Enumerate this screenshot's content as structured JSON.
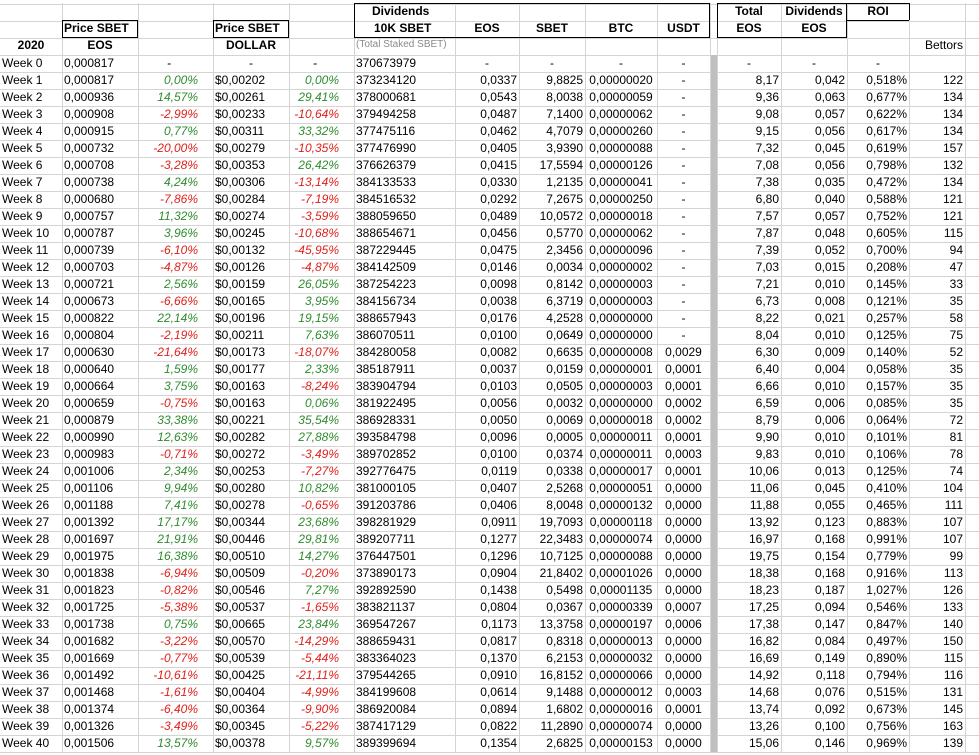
{
  "headers": {
    "price_sbet_eos": [
      "Price SBET",
      "EOS"
    ],
    "price_sbet_dollar": [
      "Price SBET",
      "DOLLAR"
    ],
    "dividends_10k": [
      "Dividends",
      "10K SBET"
    ],
    "total_staked_note": "(Total Staked SBET)",
    "eos": "EOS",
    "sbet": "SBET",
    "btc": "BTC",
    "usdt": "USDT",
    "total_eos": [
      "Total",
      "EOS"
    ],
    "dividends_eos": [
      "Dividends",
      "EOS"
    ],
    "roi": "ROI",
    "year": "2020",
    "bettors": "Bettors"
  },
  "rows": [
    {
      "week": "Week 0",
      "p_eos": "0,000817",
      "p_eos_pct": "-",
      "p_usd": "-",
      "p_usd_pct": "-",
      "staked": "370673979",
      "d_eos": "-",
      "d_sbet": "-",
      "d_btc": "-",
      "d_usdt": "-",
      "total": "-",
      "div": "-",
      "roi": "-",
      "bettors": ""
    },
    {
      "week": "Week 1",
      "p_eos": "0,000817",
      "p_eos_pct": "0,00%",
      "p_usd": "$0,00202",
      "p_usd_pct": "0,00%",
      "staked": "373234120",
      "d_eos": "0,0337",
      "d_sbet": "9,8825",
      "d_btc": "0,00000020",
      "d_usdt": "-",
      "total": "8,17",
      "div": "0,042",
      "roi": "0,518%",
      "bettors": "122"
    },
    {
      "week": "Week 2",
      "p_eos": "0,000936",
      "p_eos_pct": "14,57%",
      "p_usd": "$0,00261",
      "p_usd_pct": "29,41%",
      "staked": "378000681",
      "d_eos": "0,0543",
      "d_sbet": "8,0038",
      "d_btc": "0,00000059",
      "d_usdt": "-",
      "total": "9,36",
      "div": "0,063",
      "roi": "0,677%",
      "bettors": "134"
    },
    {
      "week": "Week 3",
      "p_eos": "0,000908",
      "p_eos_pct": "-2,99%",
      "p_usd": "$0,00233",
      "p_usd_pct": "-10,64%",
      "staked": "379494258",
      "d_eos": "0,0487",
      "d_sbet": "7,1400",
      "d_btc": "0,00000062",
      "d_usdt": "-",
      "total": "9,08",
      "div": "0,057",
      "roi": "0,622%",
      "bettors": "134"
    },
    {
      "week": "Week 4",
      "p_eos": "0,000915",
      "p_eos_pct": "0,77%",
      "p_usd": "$0,00311",
      "p_usd_pct": "33,32%",
      "staked": "377475116",
      "d_eos": "0,0462",
      "d_sbet": "4,7079",
      "d_btc": "0,00000260",
      "d_usdt": "-",
      "total": "9,15",
      "div": "0,056",
      "roi": "0,617%",
      "bettors": "134"
    },
    {
      "week": "Week 5",
      "p_eos": "0,000732",
      "p_eos_pct": "-20,00%",
      "p_usd": "$0,00279",
      "p_usd_pct": "-10,35%",
      "staked": "377476990",
      "d_eos": "0,0405",
      "d_sbet": "3,9390",
      "d_btc": "0,00000088",
      "d_usdt": "-",
      "total": "7,32",
      "div": "0,045",
      "roi": "0,619%",
      "bettors": "157"
    },
    {
      "week": "Week 6",
      "p_eos": "0,000708",
      "p_eos_pct": "-3,28%",
      "p_usd": "$0,00353",
      "p_usd_pct": "26,42%",
      "staked": "376626379",
      "d_eos": "0,0415",
      "d_sbet": "17,5594",
      "d_btc": "0,00000126",
      "d_usdt": "-",
      "total": "7,08",
      "div": "0,056",
      "roi": "0,798%",
      "bettors": "132"
    },
    {
      "week": "Week 7",
      "p_eos": "0,000738",
      "p_eos_pct": "4,24%",
      "p_usd": "$0,00306",
      "p_usd_pct": "-13,14%",
      "staked": "384133533",
      "d_eos": "0,0330",
      "d_sbet": "1,2135",
      "d_btc": "0,00000041",
      "d_usdt": "-",
      "total": "7,38",
      "div": "0,035",
      "roi": "0,472%",
      "bettors": "134"
    },
    {
      "week": "Week 8",
      "p_eos": "0,000680",
      "p_eos_pct": "-7,86%",
      "p_usd": "$0,00284",
      "p_usd_pct": "-7,19%",
      "staked": "384516532",
      "d_eos": "0,0292",
      "d_sbet": "7,2675",
      "d_btc": "0,00000250",
      "d_usdt": "-",
      "total": "6,80",
      "div": "0,040",
      "roi": "0,588%",
      "bettors": "121"
    },
    {
      "week": "Week 9",
      "p_eos": "0,000757",
      "p_eos_pct": "11,32%",
      "p_usd": "$0,00274",
      "p_usd_pct": "-3,59%",
      "staked": "388059650",
      "d_eos": "0,0489",
      "d_sbet": "10,0572",
      "d_btc": "0,00000018",
      "d_usdt": "-",
      "total": "7,57",
      "div": "0,057",
      "roi": "0,752%",
      "bettors": "121"
    },
    {
      "week": "Week 10",
      "p_eos": "0,000787",
      "p_eos_pct": "3,96%",
      "p_usd": "$0,00245",
      "p_usd_pct": "-10,68%",
      "staked": "388654671",
      "d_eos": "0,0456",
      "d_sbet": "0,5770",
      "d_btc": "0,00000062",
      "d_usdt": "-",
      "total": "7,87",
      "div": "0,048",
      "roi": "0,605%",
      "bettors": "115"
    },
    {
      "week": "Week 11",
      "p_eos": "0,000739",
      "p_eos_pct": "-6,10%",
      "p_usd": "$0,00132",
      "p_usd_pct": "-45,95%",
      "staked": "387229445",
      "d_eos": "0,0475",
      "d_sbet": "2,3456",
      "d_btc": "0,00000096",
      "d_usdt": "-",
      "total": "7,39",
      "div": "0,052",
      "roi": "0,700%",
      "bettors": "94"
    },
    {
      "week": "Week 12",
      "p_eos": "0,000703",
      "p_eos_pct": "-4,87%",
      "p_usd": "$0,00126",
      "p_usd_pct": "-4,87%",
      "staked": "384142509",
      "d_eos": "0,0146",
      "d_sbet": "0,0034",
      "d_btc": "0,00000002",
      "d_usdt": "-",
      "total": "7,03",
      "div": "0,015",
      "roi": "0,208%",
      "bettors": "47"
    },
    {
      "week": "Week 13",
      "p_eos": "0,000721",
      "p_eos_pct": "2,56%",
      "p_usd": "$0,00159",
      "p_usd_pct": "26,05%",
      "staked": "387254223",
      "d_eos": "0,0098",
      "d_sbet": "0,8142",
      "d_btc": "0,00000003",
      "d_usdt": "-",
      "total": "7,21",
      "div": "0,010",
      "roi": "0,145%",
      "bettors": "33"
    },
    {
      "week": "Week 14",
      "p_eos": "0,000673",
      "p_eos_pct": "-6,66%",
      "p_usd": "$0,00165",
      "p_usd_pct": "3,95%",
      "staked": "384156734",
      "d_eos": "0,0038",
      "d_sbet": "6,3719",
      "d_btc": "0,00000003",
      "d_usdt": "-",
      "total": "6,73",
      "div": "0,008",
      "roi": "0,121%",
      "bettors": "35"
    },
    {
      "week": "Week 15",
      "p_eos": "0,000822",
      "p_eos_pct": "22,14%",
      "p_usd": "$0,00196",
      "p_usd_pct": "19,15%",
      "staked": "388657943",
      "d_eos": "0,0176",
      "d_sbet": "4,2528",
      "d_btc": "0,00000000",
      "d_usdt": "-",
      "total": "8,22",
      "div": "0,021",
      "roi": "0,257%",
      "bettors": "58"
    },
    {
      "week": "Week 16",
      "p_eos": "0,000804",
      "p_eos_pct": "-2,19%",
      "p_usd": "$0,00211",
      "p_usd_pct": "7,63%",
      "staked": "386070511",
      "d_eos": "0,0100",
      "d_sbet": "0,0649",
      "d_btc": "0,00000000",
      "d_usdt": "-",
      "total": "8,04",
      "div": "0,010",
      "roi": "0,125%",
      "bettors": "75"
    },
    {
      "week": "Week 17",
      "p_eos": "0,000630",
      "p_eos_pct": "-21,64%",
      "p_usd": "$0,00173",
      "p_usd_pct": "-18,07%",
      "staked": "384280058",
      "d_eos": "0,0082",
      "d_sbet": "0,6635",
      "d_btc": "0,00000008",
      "d_usdt": "0,0029",
      "total": "6,30",
      "div": "0,009",
      "roi": "0,140%",
      "bettors": "52"
    },
    {
      "week": "Week 18",
      "p_eos": "0,000640",
      "p_eos_pct": "1,59%",
      "p_usd": "$0,00177",
      "p_usd_pct": "2,33%",
      "staked": "385187911",
      "d_eos": "0,0037",
      "d_sbet": "0,0159",
      "d_btc": "0,00000001",
      "d_usdt": "0,0001",
      "total": "6,40",
      "div": "0,004",
      "roi": "0,058%",
      "bettors": "35"
    },
    {
      "week": "Week 19",
      "p_eos": "0,000664",
      "p_eos_pct": "3,75%",
      "p_usd": "$0,00163",
      "p_usd_pct": "-8,24%",
      "staked": "383904794",
      "d_eos": "0,0103",
      "d_sbet": "0,0505",
      "d_btc": "0,00000003",
      "d_usdt": "0,0001",
      "total": "6,66",
      "div": "0,010",
      "roi": "0,157%",
      "bettors": "35"
    },
    {
      "week": "Week 20",
      "p_eos": "0,000659",
      "p_eos_pct": "-0,75%",
      "p_usd": "$0,00163",
      "p_usd_pct": "0,06%",
      "staked": "381922495",
      "d_eos": "0,0056",
      "d_sbet": "0,0032",
      "d_btc": "0,00000000",
      "d_usdt": "0,0002",
      "total": "6,59",
      "div": "0,006",
      "roi": "0,085%",
      "bettors": "35"
    },
    {
      "week": "Week 21",
      "p_eos": "0,000879",
      "p_eos_pct": "33,38%",
      "p_usd": "$0,00221",
      "p_usd_pct": "35,54%",
      "staked": "386928331",
      "d_eos": "0,0050",
      "d_sbet": "0,0069",
      "d_btc": "0,00000018",
      "d_usdt": "0,0002",
      "total": "8,79",
      "div": "0,006",
      "roi": "0,064%",
      "bettors": "72"
    },
    {
      "week": "Week 22",
      "p_eos": "0,000990",
      "p_eos_pct": "12,63%",
      "p_usd": "$0,00282",
      "p_usd_pct": "27,88%",
      "staked": "393584798",
      "d_eos": "0,0096",
      "d_sbet": "0,0005",
      "d_btc": "0,00000011",
      "d_usdt": "0,0001",
      "total": "9,90",
      "div": "0,010",
      "roi": "0,101%",
      "bettors": "81"
    },
    {
      "week": "Week 23",
      "p_eos": "0,000983",
      "p_eos_pct": "-0,71%",
      "p_usd": "$0,00272",
      "p_usd_pct": "-3,49%",
      "staked": "389702852",
      "d_eos": "0,0100",
      "d_sbet": "0,0374",
      "d_btc": "0,00000011",
      "d_usdt": "0,0003",
      "total": "9,83",
      "div": "0,010",
      "roi": "0,106%",
      "bettors": "78"
    },
    {
      "week": "Week 24",
      "p_eos": "0,001006",
      "p_eos_pct": "2,34%",
      "p_usd": "$0,00253",
      "p_usd_pct": "-7,27%",
      "staked": "392776475",
      "d_eos": "0,0119",
      "d_sbet": "0,0338",
      "d_btc": "0,00000017",
      "d_usdt": "0,0001",
      "total": "10,06",
      "div": "0,013",
      "roi": "0,125%",
      "bettors": "74"
    },
    {
      "week": "Week 25",
      "p_eos": "0,001106",
      "p_eos_pct": "9,94%",
      "p_usd": "$0,00280",
      "p_usd_pct": "10,82%",
      "staked": "381000105",
      "d_eos": "0,0407",
      "d_sbet": "2,5268",
      "d_btc": "0,00000051",
      "d_usdt": "0,0000",
      "total": "11,06",
      "div": "0,045",
      "roi": "0,410%",
      "bettors": "104"
    },
    {
      "week": "Week 26",
      "p_eos": "0,001188",
      "p_eos_pct": "7,41%",
      "p_usd": "$0,00278",
      "p_usd_pct": "-0,65%",
      "staked": "391203786",
      "d_eos": "0,0406",
      "d_sbet": "8,0048",
      "d_btc": "0,00000132",
      "d_usdt": "0,0000",
      "total": "11,88",
      "div": "0,055",
      "roi": "0,465%",
      "bettors": "111"
    },
    {
      "week": "Week 27",
      "p_eos": "0,001392",
      "p_eos_pct": "17,17%",
      "p_usd": "$0,00344",
      "p_usd_pct": "23,68%",
      "staked": "398281929",
      "d_eos": "0,0911",
      "d_sbet": "19,7093",
      "d_btc": "0,00000118",
      "d_usdt": "0,0000",
      "total": "13,92",
      "div": "0,123",
      "roi": "0,883%",
      "bettors": "107"
    },
    {
      "week": "Week 28",
      "p_eos": "0,001697",
      "p_eos_pct": "21,91%",
      "p_usd": "$0,00446",
      "p_usd_pct": "29,81%",
      "staked": "389207711",
      "d_eos": "0,1277",
      "d_sbet": "22,3483",
      "d_btc": "0,00000074",
      "d_usdt": "0,0000",
      "total": "16,97",
      "div": "0,168",
      "roi": "0,991%",
      "bettors": "107"
    },
    {
      "week": "Week 29",
      "p_eos": "0,001975",
      "p_eos_pct": "16,38%",
      "p_usd": "$0,00510",
      "p_usd_pct": "14,27%",
      "staked": "376447501",
      "d_eos": "0,1296",
      "d_sbet": "10,7125",
      "d_btc": "0,00000088",
      "d_usdt": "0,0000",
      "total": "19,75",
      "div": "0,154",
      "roi": "0,779%",
      "bettors": "99"
    },
    {
      "week": "Week 30",
      "p_eos": "0,001838",
      "p_eos_pct": "-6,94%",
      "p_usd": "$0,00509",
      "p_usd_pct": "-0,20%",
      "staked": "373890173",
      "d_eos": "0,0904",
      "d_sbet": "21,8402",
      "d_btc": "0,00001026",
      "d_usdt": "0,0000",
      "total": "18,38",
      "div": "0,168",
      "roi": "0,916%",
      "bettors": "113"
    },
    {
      "week": "Week 31",
      "p_eos": "0,001823",
      "p_eos_pct": "-0,82%",
      "p_usd": "$0,00546",
      "p_usd_pct": "7,27%",
      "staked": "392892590",
      "d_eos": "0,1438",
      "d_sbet": "0,5498",
      "d_btc": "0,00001135",
      "d_usdt": "0,0000",
      "total": "18,23",
      "div": "0,187",
      "roi": "1,027%",
      "bettors": "126"
    },
    {
      "week": "Week 32",
      "p_eos": "0,001725",
      "p_eos_pct": "-5,38%",
      "p_usd": "$0,00537",
      "p_usd_pct": "-1,65%",
      "staked": "383821137",
      "d_eos": "0,0804",
      "d_sbet": "0,0367",
      "d_btc": "0,00000339",
      "d_usdt": "0,0007",
      "total": "17,25",
      "div": "0,094",
      "roi": "0,546%",
      "bettors": "133"
    },
    {
      "week": "Week 33",
      "p_eos": "0,001738",
      "p_eos_pct": "0,75%",
      "p_usd": "$0,00665",
      "p_usd_pct": "23,84%",
      "staked": "369547267",
      "d_eos": "0,1173",
      "d_sbet": "13,3758",
      "d_btc": "0,00000197",
      "d_usdt": "0,0006",
      "total": "17,38",
      "div": "0,147",
      "roi": "0,847%",
      "bettors": "140"
    },
    {
      "week": "Week 34",
      "p_eos": "0,001682",
      "p_eos_pct": "-3,22%",
      "p_usd": "$0,00570",
      "p_usd_pct": "-14,29%",
      "staked": "388659431",
      "d_eos": "0,0817",
      "d_sbet": "0,8318",
      "d_btc": "0,00000013",
      "d_usdt": "0,0000",
      "total": "16,82",
      "div": "0,084",
      "roi": "0,497%",
      "bettors": "150"
    },
    {
      "week": "Week 35",
      "p_eos": "0,001669",
      "p_eos_pct": "-0,77%",
      "p_usd": "$0,00539",
      "p_usd_pct": "-5,44%",
      "staked": "383364023",
      "d_eos": "0,1370",
      "d_sbet": "6,2153",
      "d_btc": "0,00000032",
      "d_usdt": "0,0000",
      "total": "16,69",
      "div": "0,149",
      "roi": "0,890%",
      "bettors": "115"
    },
    {
      "week": "Week 36",
      "p_eos": "0,001492",
      "p_eos_pct": "-10,61%",
      "p_usd": "$0,00425",
      "p_usd_pct": "-21,11%",
      "staked": "379544265",
      "d_eos": "0,0910",
      "d_sbet": "16,8152",
      "d_btc": "0,00000066",
      "d_usdt": "0,0000",
      "total": "14,92",
      "div": "0,118",
      "roi": "0,794%",
      "bettors": "116"
    },
    {
      "week": "Week 37",
      "p_eos": "0,001468",
      "p_eos_pct": "-1,61%",
      "p_usd": "$0,00404",
      "p_usd_pct": "-4,99%",
      "staked": "384199608",
      "d_eos": "0,0614",
      "d_sbet": "9,1488",
      "d_btc": "0,00000012",
      "d_usdt": "0,0003",
      "total": "14,68",
      "div": "0,076",
      "roi": "0,515%",
      "bettors": "131"
    },
    {
      "week": "Week 38",
      "p_eos": "0,001374",
      "p_eos_pct": "-6,40%",
      "p_usd": "$0,00364",
      "p_usd_pct": "-9,90%",
      "staked": "386920084",
      "d_eos": "0,0894",
      "d_sbet": "1,6802",
      "d_btc": "0,00000016",
      "d_usdt": "0,0001",
      "total": "13,74",
      "div": "0,092",
      "roi": "0,673%",
      "bettors": "145"
    },
    {
      "week": "Week 39",
      "p_eos": "0,001326",
      "p_eos_pct": "-3,49%",
      "p_usd": "$0,00345",
      "p_usd_pct": "-5,22%",
      "staked": "387417129",
      "d_eos": "0,0822",
      "d_sbet": "11,2890",
      "d_btc": "0,00000074",
      "d_usdt": "0,0000",
      "total": "13,26",
      "div": "0,100",
      "roi": "0,756%",
      "bettors": "163"
    },
    {
      "week": "Week 40",
      "p_eos": "0,001506",
      "p_eos_pct": "13,57%",
      "p_usd": "$0,00378",
      "p_usd_pct": "9,57%",
      "staked": "389399694",
      "d_eos": "0,1354",
      "d_sbet": "2,6825",
      "d_btc": "0,00000153",
      "d_usdt": "0,0000",
      "total": "15,06",
      "div": "0,146",
      "roi": "0,969%",
      "bettors": "139"
    }
  ]
}
